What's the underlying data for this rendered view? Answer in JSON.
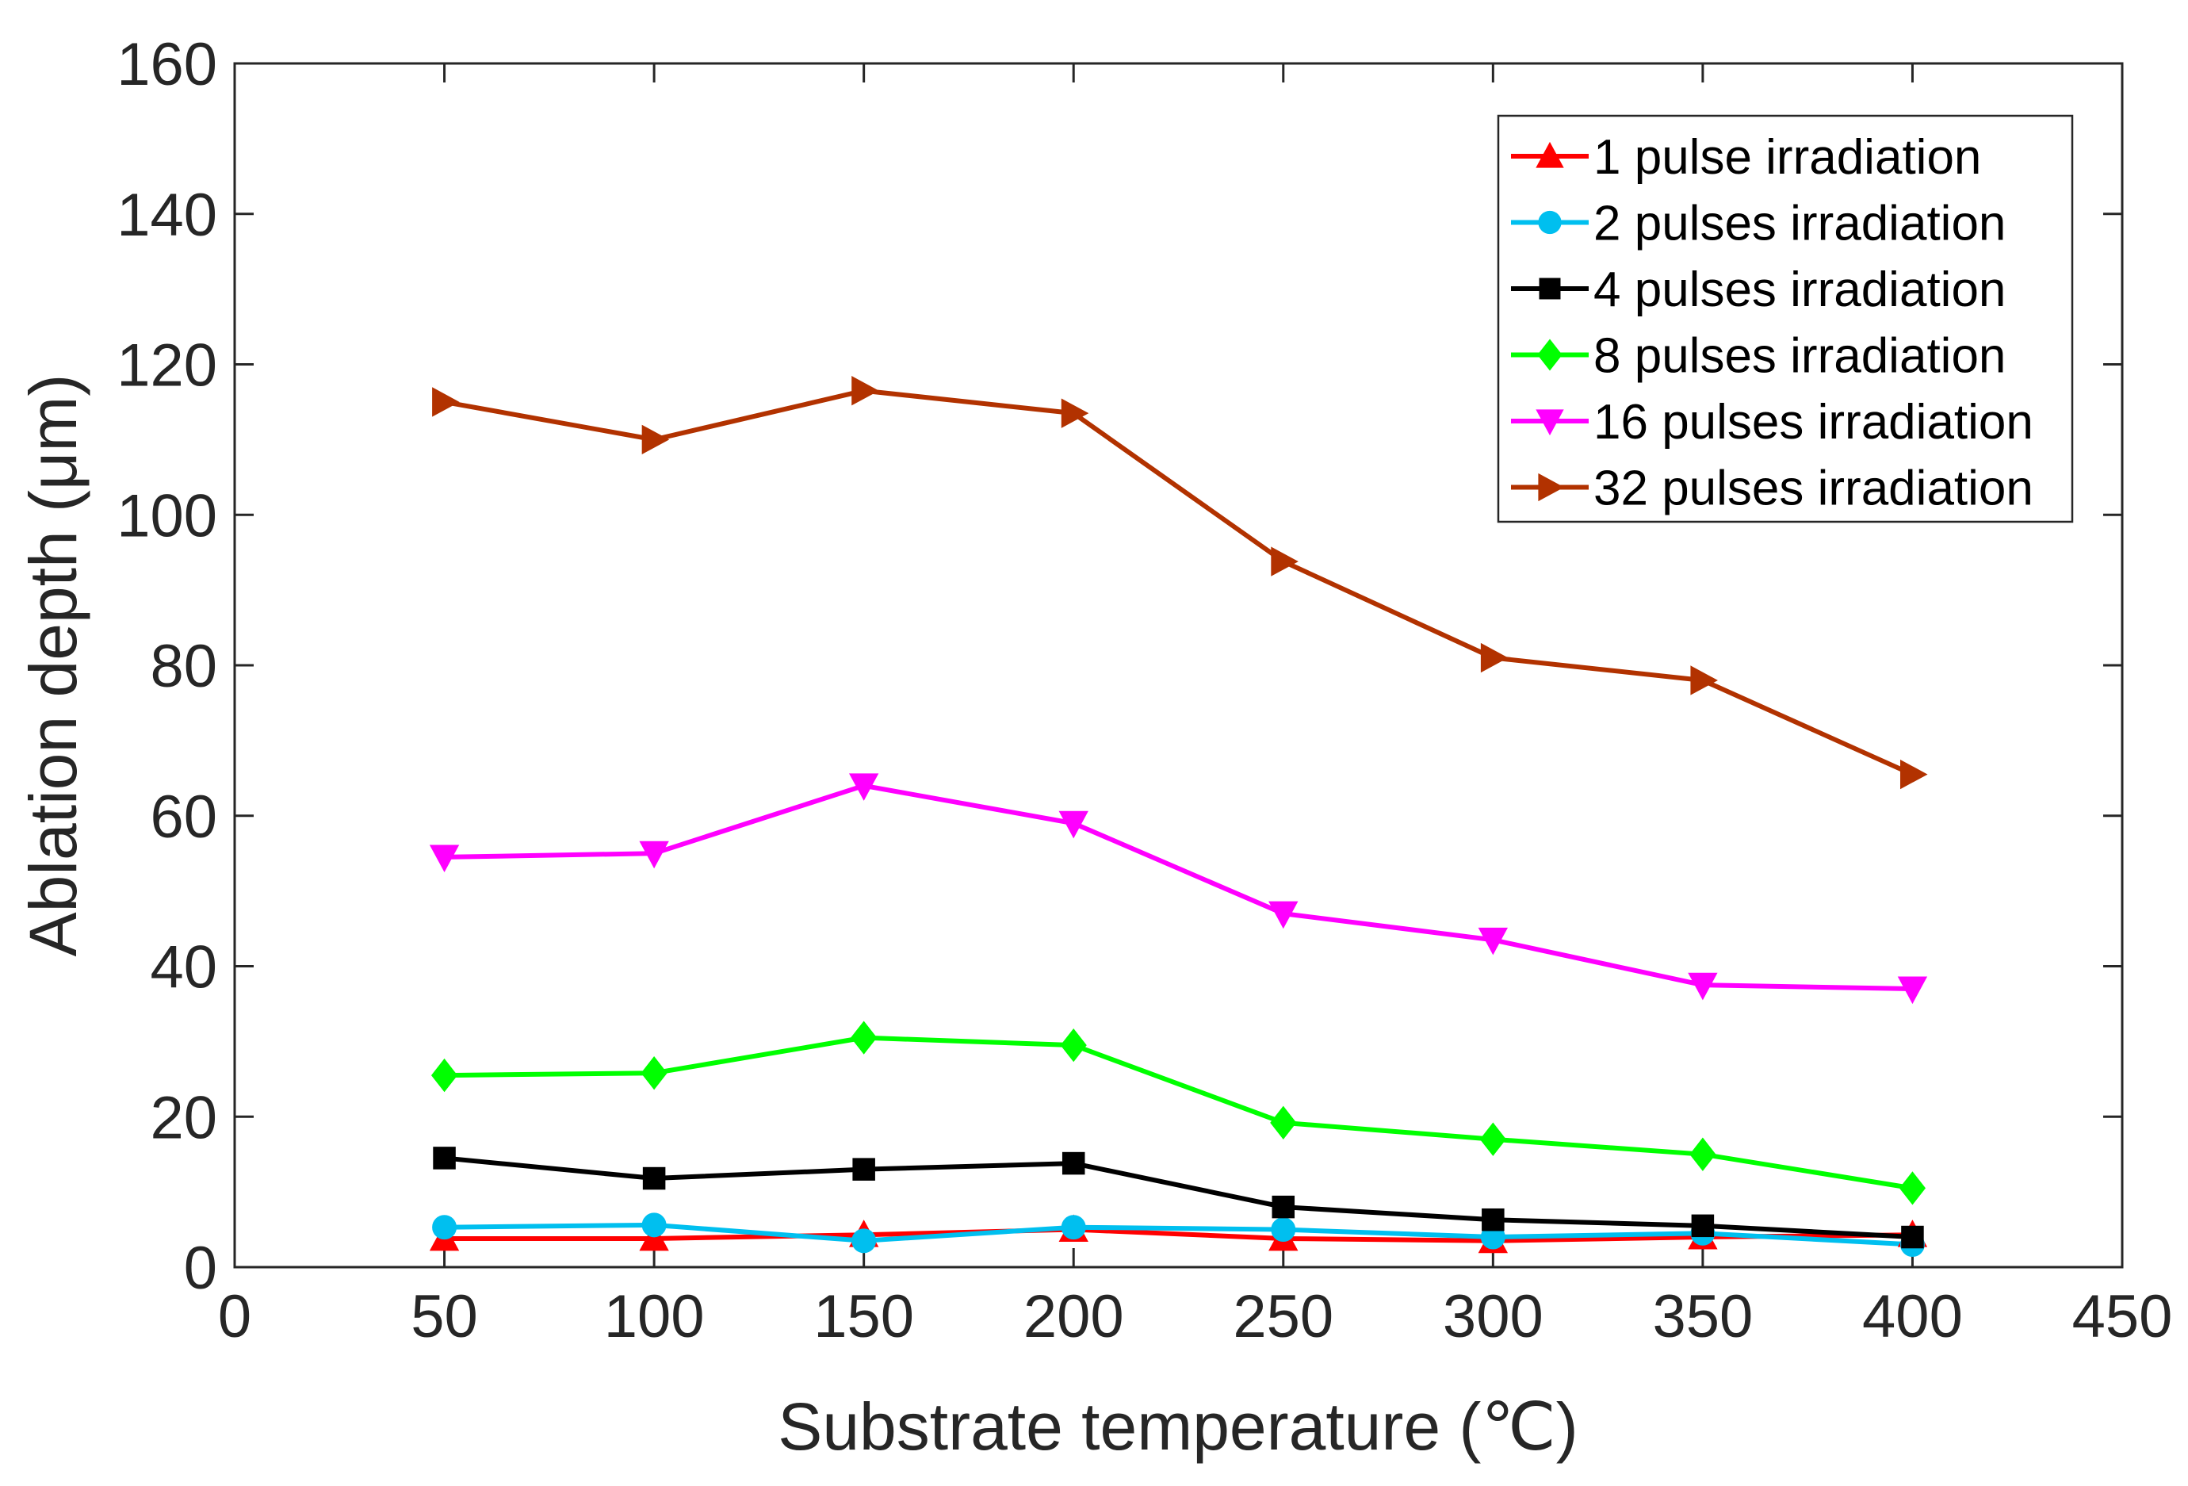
{
  "chart_data": {
    "type": "line",
    "title": "",
    "xlabel": "Substrate temperature (℃)",
    "ylabel": "Ablation depth (μm)",
    "xlim": [
      0,
      450
    ],
    "ylim": [
      0,
      160
    ],
    "xticks": [
      0,
      50,
      100,
      150,
      200,
      250,
      300,
      350,
      400,
      450
    ],
    "yticks": [
      0,
      20,
      40,
      60,
      80,
      100,
      120,
      140,
      160
    ],
    "xtick_labels": [
      "0",
      "50",
      "100",
      "150",
      "200",
      "250",
      "300",
      "350",
      "400",
      "450"
    ],
    "ytick_labels": [
      "0",
      "20",
      "40",
      "60",
      "80",
      "100",
      "120",
      "140",
      "160"
    ],
    "grid": false,
    "legend_position": "top-right",
    "x": [
      50,
      100,
      150,
      200,
      250,
      300,
      350,
      400
    ],
    "series": [
      {
        "name": "1   pulse irradiation",
        "color": "#ff0000",
        "marker": "triangle-up",
        "values": [
          3.8,
          3.8,
          4.3,
          5.0,
          3.8,
          3.5,
          4.0,
          4.3
        ]
      },
      {
        "name": "2   pulses irradiation",
        "color": "#00bfef",
        "marker": "circle",
        "values": [
          5.3,
          5.6,
          3.5,
          5.3,
          5.0,
          4.0,
          4.5,
          3.0
        ]
      },
      {
        "name": "4   pulses irradiation",
        "color": "#000000",
        "marker": "square",
        "values": [
          14.5,
          11.8,
          13.0,
          13.8,
          8.0,
          6.3,
          5.5,
          4.0
        ]
      },
      {
        "name": "8   pulses irradiation",
        "color": "#00ff00",
        "marker": "diamond",
        "values": [
          25.5,
          25.8,
          30.5,
          29.5,
          19.2,
          17.0,
          15.0,
          10.5
        ]
      },
      {
        "name": "16 pulses irradiation",
        "color": "#ff00ff",
        "marker": "triangle-down",
        "values": [
          54.5,
          55.0,
          64.0,
          59.0,
          47.0,
          43.5,
          37.5,
          37.0
        ]
      },
      {
        "name": "32 pulses irradiation",
        "color": "#b23200",
        "marker": "triangle-right",
        "values": [
          115.0,
          110.0,
          116.5,
          113.5,
          93.8,
          81.0,
          78.0,
          65.5
        ]
      }
    ]
  }
}
